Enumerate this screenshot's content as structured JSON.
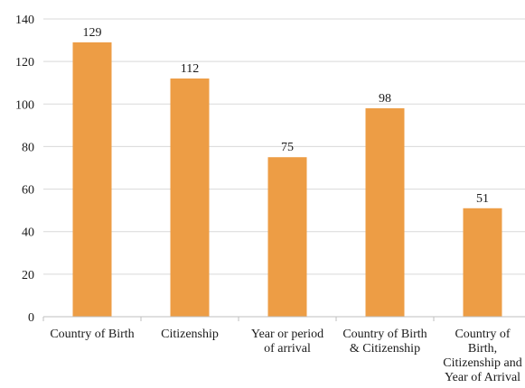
{
  "chart_data": {
    "type": "bar",
    "title": "",
    "xlabel": "",
    "ylabel": "",
    "categories": [
      [
        "Country of Birth"
      ],
      [
        "Citizenship"
      ],
      [
        "Year or period",
        "of arrival"
      ],
      [
        "Country of Birth",
        "& Citizenship"
      ],
      [
        "Country of",
        "Birth,",
        "Citizenship and",
        "Year of Arrival"
      ]
    ],
    "values": [
      129,
      112,
      75,
      98,
      51
    ],
    "ylim": [
      0,
      140
    ],
    "yticks": [
      0,
      20,
      40,
      60,
      80,
      100,
      120,
      140
    ],
    "grid": true,
    "legend": "none",
    "colors": {
      "bar": "#ED9D45",
      "grid": "#D9D9D9",
      "axis": "#BFBFBF"
    }
  }
}
